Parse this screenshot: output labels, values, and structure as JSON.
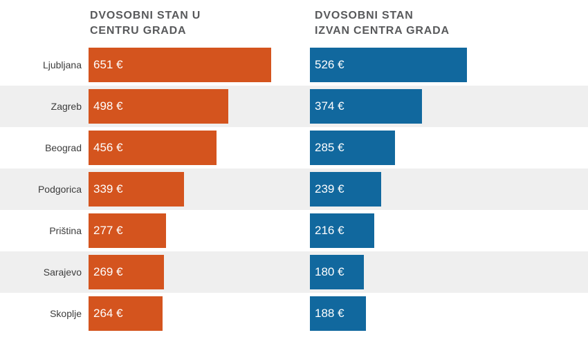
{
  "headers": {
    "left": {
      "line1": "DVOSOBNI STAN U",
      "line2": "CENTRU GRADA"
    },
    "right": {
      "line1": "DVOSOBNI STAN",
      "line2": "IZVAN CENTRA GRADA"
    }
  },
  "colors": {
    "center_bar": "#d4541e",
    "outside_bar": "#11689e",
    "row_stripe": "#efefef",
    "header_text": "#58595b",
    "city_text": "#3c3c3c",
    "value_text": "#ffffff"
  },
  "chart_data": {
    "type": "bar",
    "orientation": "horizontal",
    "categories": [
      "Ljubljana",
      "Zagreb",
      "Beograd",
      "Podgorica",
      "Priština",
      "Sarajevo",
      "Skoplje"
    ],
    "series": [
      {
        "name": "DVOSOBNI STAN U CENTRU GRADA",
        "color": "#d4541e",
        "values": [
          651,
          498,
          456,
          339,
          277,
          269,
          264
        ],
        "labels": [
          "651 €",
          "498 €",
          "456 €",
          "339 €",
          "277 €",
          "269 €",
          "264 €"
        ]
      },
      {
        "name": "DVOSOBNI STAN IZVAN CENTRA GRADA",
        "color": "#11689e",
        "values": [
          526,
          374,
          285,
          239,
          216,
          180,
          188
        ],
        "labels": [
          "526 €",
          "374 €",
          "285 €",
          "239 €",
          "216 €",
          "180 €",
          "188 €"
        ]
      }
    ],
    "unit": "€",
    "value_axis_implied_max": 700,
    "legend_position": "column-headers",
    "grid": false,
    "row_striping": "alternate starting from second row"
  }
}
